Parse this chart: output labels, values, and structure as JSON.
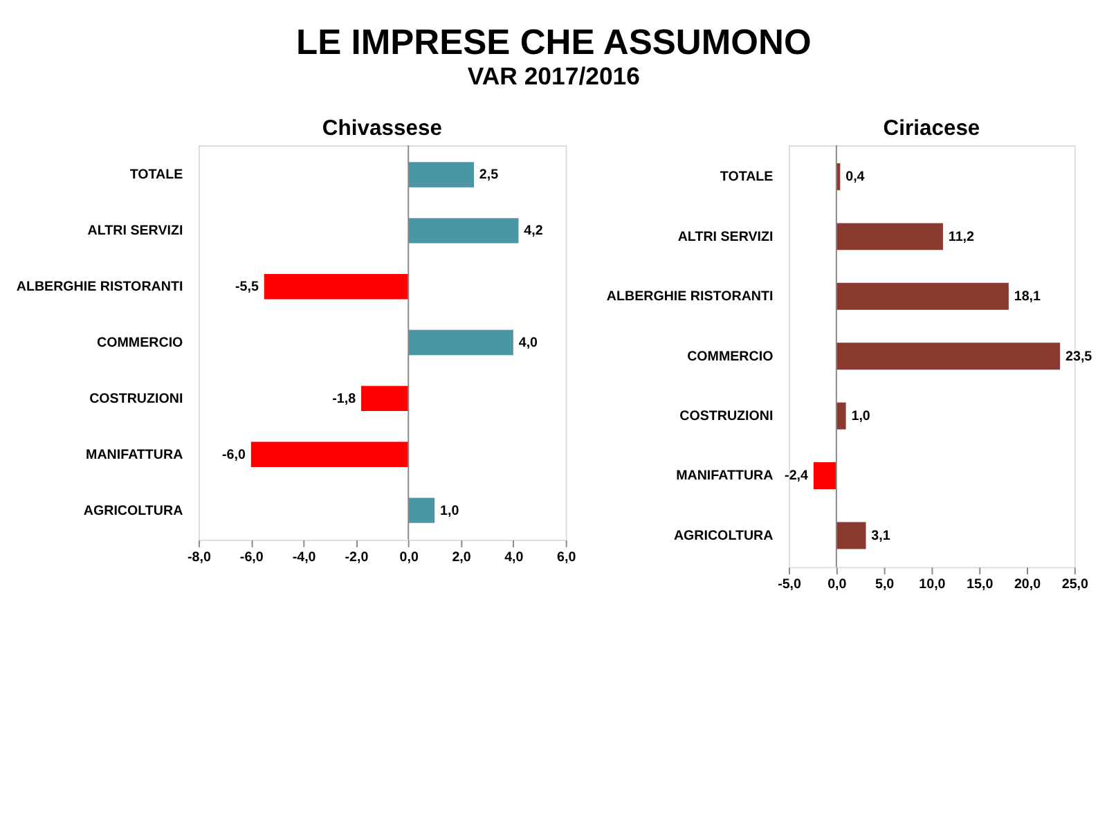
{
  "chart_data": [
    {
      "type": "bar",
      "orientation": "horizontal",
      "title": "Chivassese",
      "annotations": [
        "LE IMPRESE CHE ASSUMONO",
        "VAR 2017/2016"
      ],
      "categories": [
        "TOTALE",
        "ALTRI SERVIZI",
        "ALBERGHIE RISTORANTI",
        "COMMERCIO",
        "COSTRUZIONI",
        "MANIFATTURA",
        "AGRICOLTURA"
      ],
      "values": [
        2.5,
        4.2,
        -5.5,
        4.0,
        -1.8,
        -6.0,
        1.0
      ],
      "value_labels": [
        "2,5",
        "4,2",
        "-5,5",
        "4,0",
        "-1,8",
        "-6,0",
        "1,0"
      ],
      "colors": [
        "#4a96a6",
        "#4a96a6",
        "#ff0000",
        "#4a96a6",
        "#ff0000",
        "#ff0000",
        "#4a96a6"
      ],
      "xlim": [
        -8,
        6
      ],
      "xticks": [
        {
          "value": -8,
          "label": "-8,0"
        },
        {
          "value": -6,
          "label": "-6,0"
        },
        {
          "value": -4,
          "label": "-4,0"
        },
        {
          "value": -2,
          "label": "-2,0"
        },
        {
          "value": 0,
          "label": "0,0"
        },
        {
          "value": 2,
          "label": "2,0"
        },
        {
          "value": 4,
          "label": "4,0"
        },
        {
          "value": 6,
          "label": "6,0"
        }
      ],
      "ref_lines": [
        {
          "axis": "x",
          "value": 0
        }
      ],
      "grid": false
    },
    {
      "type": "bar",
      "orientation": "horizontal",
      "title": "Ciriacese",
      "categories": [
        "TOTALE",
        "ALTRI SERVIZI",
        "ALBERGHIE RISTORANTI",
        "COMMERCIO",
        "COSTRUZIONI",
        "MANIFATTURA",
        "AGRICOLTURA"
      ],
      "values": [
        0.4,
        11.2,
        18.1,
        23.5,
        1.0,
        -2.4,
        3.1
      ],
      "value_labels": [
        "0,4",
        "11,2",
        "18,1",
        "23,5",
        "1,0",
        "-2,4",
        "3,1"
      ],
      "colors": [
        "#8b3a30",
        "#8b3a30",
        "#8b3a30",
        "#8b3a30",
        "#8b3a30",
        "#ff0000",
        "#8b3a30"
      ],
      "xlim": [
        -5,
        25
      ],
      "xticks": [
        {
          "value": -5,
          "label": "-5,0"
        },
        {
          "value": 0,
          "label": "0,0"
        },
        {
          "value": 5,
          "label": "5,0"
        },
        {
          "value": 10,
          "label": "10,0"
        },
        {
          "value": 15,
          "label": "15,0"
        },
        {
          "value": 20,
          "label": "20,0"
        },
        {
          "value": 25,
          "label": "25,0"
        }
      ],
      "ref_lines": [
        {
          "axis": "x",
          "value": 0
        }
      ],
      "grid": false
    }
  ]
}
